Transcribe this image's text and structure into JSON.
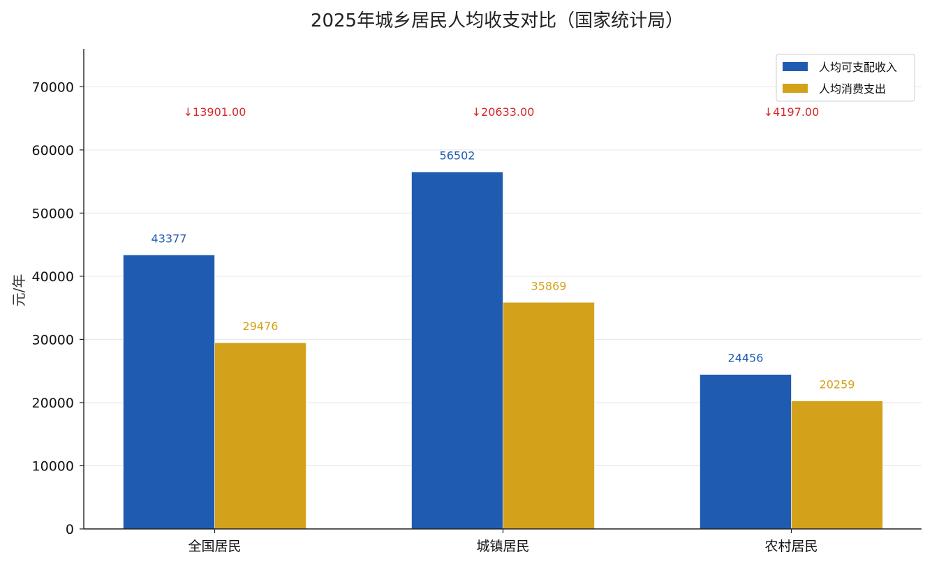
{
  "chart_data": {
    "type": "bar",
    "title": "2025年城乡居民人均收支对比（国家统计局）",
    "xlabel": "",
    "ylabel": "元/年",
    "categories": [
      "全国居民",
      "城镇居民",
      "农村居民"
    ],
    "series": [
      {
        "name": "人均可支配收入",
        "values": [
          43377,
          56502,
          24456
        ],
        "color": "#1f5bb0"
      },
      {
        "name": "人均消费支出",
        "values": [
          29476,
          35869,
          20259
        ],
        "color": "#d4a11a"
      }
    ],
    "value_labels": {
      "income": [
        "43377",
        "56502",
        "24456"
      ],
      "spending": [
        "29476",
        "35869",
        "20259"
      ]
    },
    "annotations": [
      "↓13901.00",
      "↓20633.00",
      "↓4197.00"
    ],
    "annotation_color": "#d62728",
    "ylim": [
      0,
      76000
    ],
    "yticks": [
      0,
      10000,
      20000,
      30000,
      40000,
      50000,
      60000,
      70000
    ],
    "ytick_labels": [
      "0",
      "10000",
      "20000",
      "30000",
      "40000",
      "50000",
      "60000",
      "70000"
    ],
    "grid": true,
    "legend_position": "top-right"
  }
}
